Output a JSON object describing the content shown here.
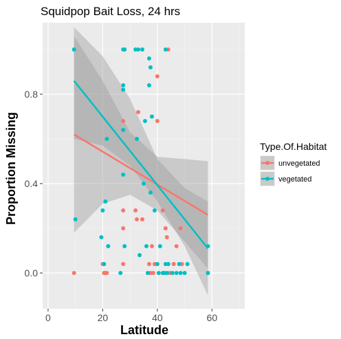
{
  "chart_data": {
    "type": "scatter",
    "title": "Squidpop Bait Loss, 24 hrs",
    "xlabel": "Latitude",
    "ylabel": "Proportion Missing",
    "xlim": [
      -2,
      72
    ],
    "ylim": [
      -0.16,
      1.12
    ],
    "x_ticks": [
      0,
      20,
      40,
      60
    ],
    "y_ticks": [
      0.0,
      0.4,
      0.8
    ],
    "y_tick_labels": [
      "0.0",
      "0.4",
      "0.8"
    ],
    "grid": true,
    "legend": {
      "title": "Type.Of.Habitat",
      "position": "right"
    },
    "series": [
      {
        "name": "unvegetated",
        "color": "#F8766D",
        "points": [
          [
            9.5,
            0.0
          ],
          [
            20,
            0.04
          ],
          [
            20.5,
            0.0
          ],
          [
            21,
            0.0
          ],
          [
            21.5,
            0.0
          ],
          [
            27.5,
            0.04
          ],
          [
            27.5,
            0.2
          ],
          [
            27.5,
            0.28
          ],
          [
            27.5,
            0.68
          ],
          [
            32,
            0.28
          ],
          [
            32.5,
            0.24
          ],
          [
            33,
            0.72
          ],
          [
            34.5,
            0.24
          ],
          [
            37,
            0.04
          ],
          [
            37.5,
            0.0
          ],
          [
            38,
            0.12
          ],
          [
            38.5,
            0.0
          ],
          [
            39,
            0.04
          ],
          [
            40,
            0.88
          ],
          [
            40,
            0.68
          ],
          [
            42,
            0.28
          ],
          [
            42.5,
            0.0
          ],
          [
            43,
            0.2
          ],
          [
            43.5,
            0.16
          ],
          [
            44,
            1.0
          ],
          [
            44.5,
            0.0
          ],
          [
            46,
            0.04
          ],
          [
            47,
            0.12
          ],
          [
            48.5,
            0.2
          ],
          [
            49,
            0.04
          ],
          [
            58.5,
            0.0
          ]
        ],
        "fit_line": {
          "x": [
            9.5,
            58.5
          ],
          "y": [
            0.62,
            0.26
          ]
        },
        "fit_band": {
          "x": [
            9.5,
            20,
            30,
            40,
            50,
            58.5
          ],
          "lower": [
            0.18,
            0.31,
            0.35,
            0.28,
            0.14,
            0.02
          ],
          "upper": [
            1.06,
            0.86,
            0.63,
            0.52,
            0.51,
            0.5
          ]
        }
      },
      {
        "name": "vegetated",
        "color": "#00BFC4",
        "points": [
          [
            9.5,
            1.0
          ],
          [
            10,
            0.24
          ],
          [
            19.5,
            0.16
          ],
          [
            20,
            0.28
          ],
          [
            20.5,
            0.04
          ],
          [
            21,
            0.32
          ],
          [
            21.5,
            0.6
          ],
          [
            22,
            0.12
          ],
          [
            26.5,
            0.0
          ],
          [
            27.5,
            1.0
          ],
          [
            27.5,
            0.84
          ],
          [
            27.5,
            0.82
          ],
          [
            27.5,
            0.44
          ],
          [
            27.5,
            0.64
          ],
          [
            28,
            1.0
          ],
          [
            28,
            0.12
          ],
          [
            32,
            1.0
          ],
          [
            32.5,
            0.6
          ],
          [
            33,
            1.0
          ],
          [
            33.5,
            0.08
          ],
          [
            34.5,
            1.0
          ],
          [
            35,
            0.4
          ],
          [
            35.5,
            0.68
          ],
          [
            36,
            0.12
          ],
          [
            36.5,
            0.0
          ],
          [
            37,
            0.96
          ],
          [
            37,
            0.84
          ],
          [
            37.5,
            0.92
          ],
          [
            37.5,
            0.36
          ],
          [
            38,
            0.7
          ],
          [
            39,
            0.28
          ],
          [
            40,
            0.04
          ],
          [
            40.5,
            0.0
          ],
          [
            41,
            0.12
          ],
          [
            42,
            0.0
          ],
          [
            42.5,
            0.0
          ],
          [
            43,
            1.0
          ],
          [
            43,
            0.04
          ],
          [
            43.5,
            0.0
          ],
          [
            44,
            0.04
          ],
          [
            45.5,
            0.0
          ],
          [
            47,
            0.0
          ],
          [
            48,
            0.04
          ],
          [
            48.5,
            0.0
          ],
          [
            50,
            0.0
          ],
          [
            51,
            0.04
          ],
          [
            58.5,
            0.12
          ],
          [
            58.5,
            0.0
          ]
        ],
        "fit_line": {
          "x": [
            9.5,
            58.5
          ],
          "y": [
            0.86,
            0.11
          ]
        },
        "fit_band": {
          "x": [
            9.5,
            20,
            30,
            40,
            50,
            58.5
          ],
          "lower": [
            0.6,
            0.57,
            0.48,
            0.32,
            0.12,
            -0.1
          ],
          "upper": [
            1.1,
            0.97,
            0.78,
            0.51,
            0.38,
            0.32
          ]
        }
      }
    ]
  }
}
